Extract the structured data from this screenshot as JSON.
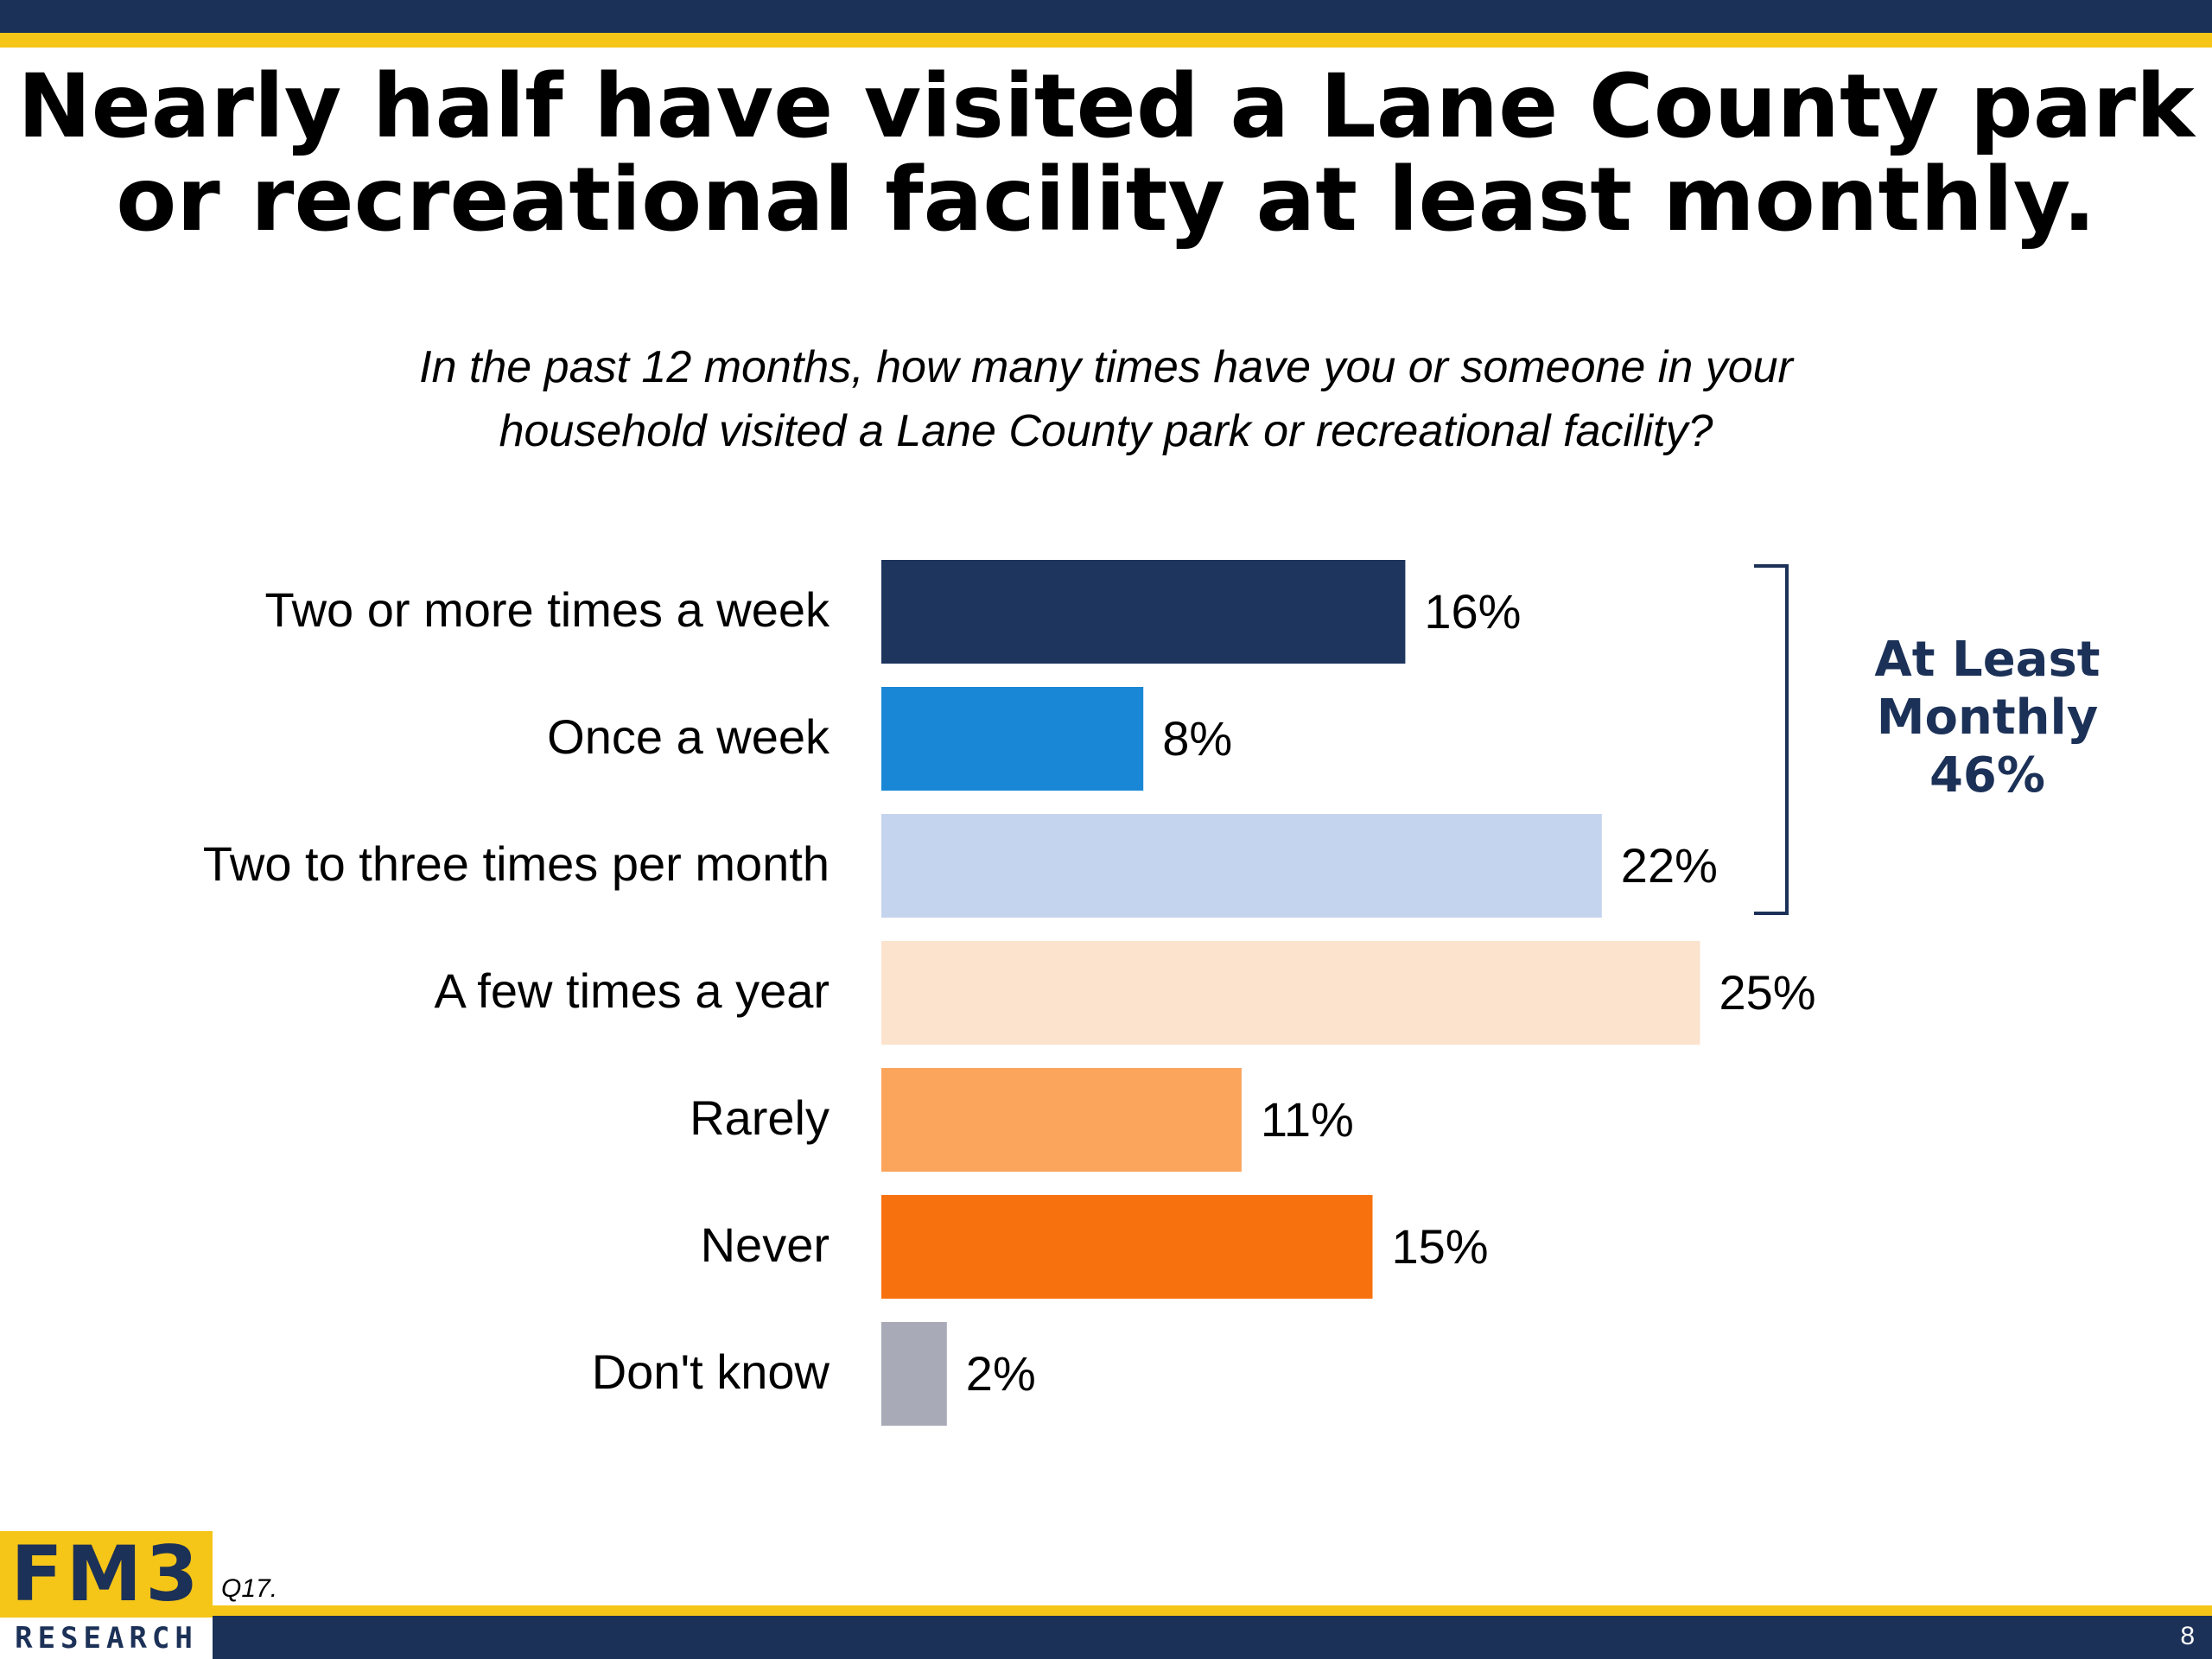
{
  "slide": {
    "title_line1": "Nearly half have visited a Lane County park",
    "title_line2": "or recreational facility at least monthly.",
    "subtitle_line1": "In the past 12 months, how many times have you or someone in your",
    "subtitle_line2": "household visited a Lane County park or recreational facility?",
    "source_note": "Q17.",
    "page_number": "8",
    "logo_top": "FM3",
    "logo_bottom": "RESEARCH"
  },
  "bracket": {
    "line1": "At Least",
    "line2": "Monthly",
    "line3": "46%",
    "covers_categories": [
      "Two or more times a week",
      "Once a week",
      "Two to three times per month"
    ]
  },
  "colors": {
    "navy": "#1c3157",
    "gold": "#f5c518"
  },
  "chart_data": {
    "type": "bar",
    "orientation": "horizontal",
    "categories": [
      "Two or more times a week",
      "Once a week",
      "Two to three times per month",
      "A few times a year",
      "Rarely",
      "Never",
      "Don't know"
    ],
    "values": [
      16,
      8,
      22,
      25,
      11,
      15,
      2
    ],
    "value_labels": [
      "16%",
      "8%",
      "22%",
      "25%",
      "11%",
      "15%",
      "2%"
    ],
    "colors": [
      "#1e355e",
      "#1a87d6",
      "#c5d4ee",
      "#fbe3cd",
      "#fba55c",
      "#f7720f",
      "#a8aab7"
    ],
    "xlim": [
      0,
      25
    ],
    "grid": false,
    "legend": "none"
  }
}
